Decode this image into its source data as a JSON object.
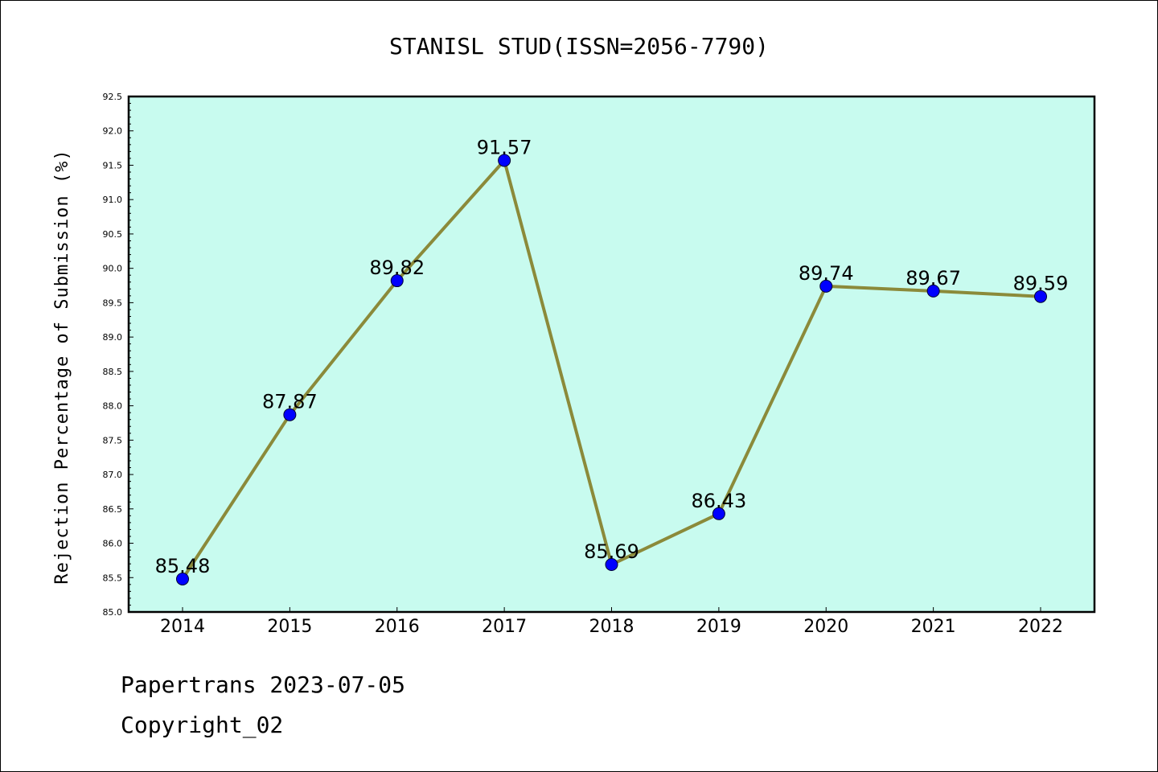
{
  "chart_data": {
    "type": "line",
    "title": "STANISL STUD(ISSN=2056-7790)",
    "xlabel": "",
    "ylabel": "Rejection Percentage of Submission (%)",
    "categories": [
      "2014",
      "2015",
      "2016",
      "2017",
      "2018",
      "2019",
      "2020",
      "2021",
      "2022"
    ],
    "series": [
      {
        "values": [
          85.48,
          87.87,
          89.82,
          91.57,
          85.69,
          86.43,
          89.74,
          89.67,
          89.59
        ],
        "labels": [
          "85.48",
          "87.87",
          "89.82",
          "91.57",
          "85.69",
          "86.43",
          "89.74",
          "89.67",
          "89.59"
        ],
        "line_color": "#8b8a3a",
        "marker_color": "#0000ff"
      }
    ],
    "ylim": [
      85.0,
      92.5
    ],
    "yticks": [
      "85.0",
      "85.5",
      "86.0",
      "86.5",
      "87.0",
      "87.5",
      "88.0",
      "88.5",
      "89.0",
      "89.5",
      "90.0",
      "90.5",
      "91.0",
      "91.5",
      "92.0",
      "92.5"
    ],
    "grid": false,
    "plot_background": "#c8fbef"
  },
  "footer": {
    "line1": "Papertrans 2023-07-05",
    "line2": "Copyright_02"
  }
}
